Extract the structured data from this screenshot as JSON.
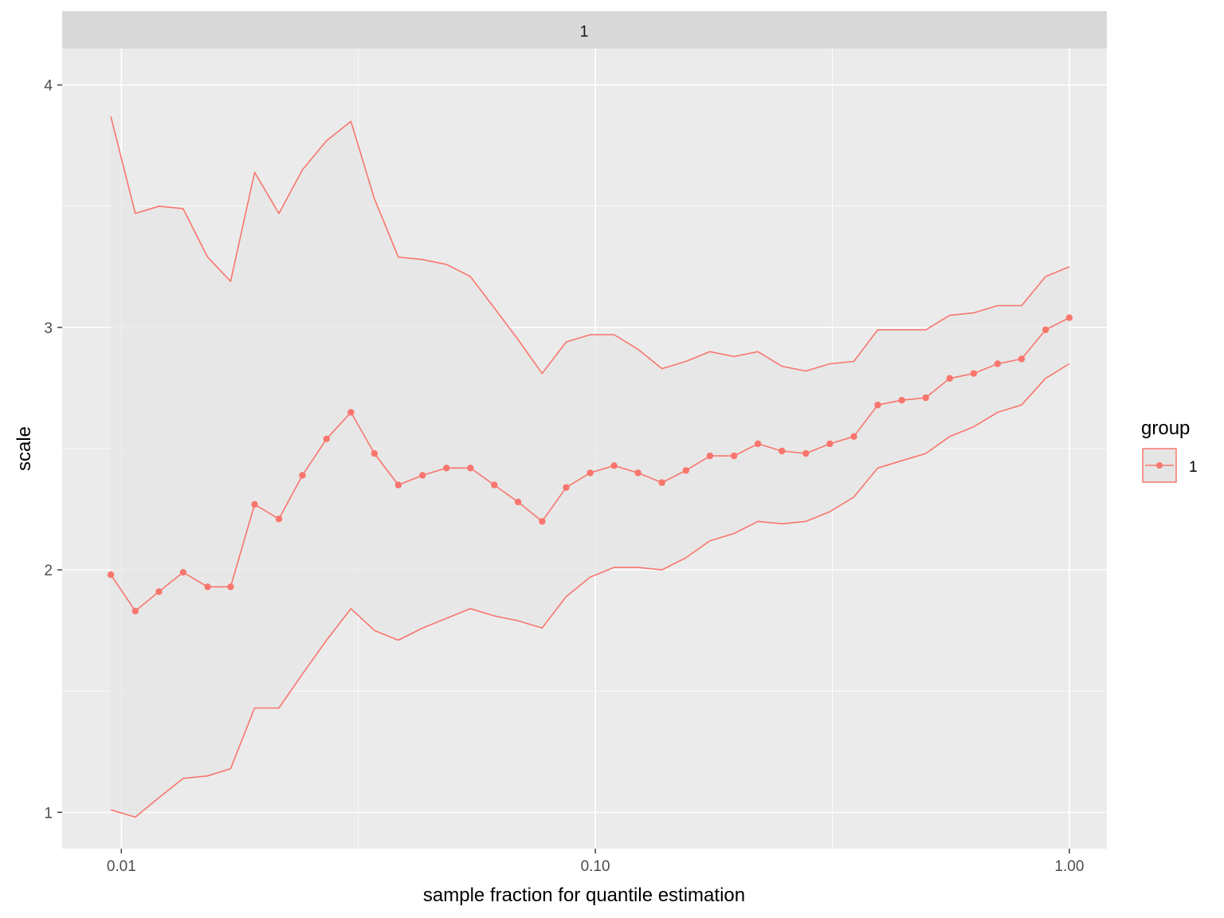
{
  "chart_data": {
    "type": "line",
    "title": "",
    "facet_label": "1",
    "xlabel": "sample fraction for quantile estimation",
    "ylabel": "scale",
    "x_scale": "log10",
    "xlim": [
      0.0075,
      1.2
    ],
    "ylim": [
      0.85,
      4.15
    ],
    "x_ticks": [
      0.01,
      0.1,
      1.0
    ],
    "x_tick_labels": [
      "0.01",
      "0.10",
      "1.00"
    ],
    "y_ticks": [
      1,
      2,
      3,
      4
    ],
    "y_tick_labels": [
      "1",
      "2",
      "3",
      "4"
    ],
    "grid": true,
    "legend": {
      "title": "group",
      "entries": [
        "1"
      ],
      "position": "right"
    },
    "colors": {
      "series": "#f8766d",
      "ribbon": "#e5e5e5",
      "panel": "#ebebeb",
      "strip": "#d9d9d9",
      "grid": "#ffffff"
    },
    "x": [
      0.0095,
      0.0107,
      0.012,
      0.0135,
      0.0152,
      0.017,
      0.0191,
      0.0215,
      0.0241,
      0.0271,
      0.0305,
      0.0342,
      0.0384,
      0.0432,
      0.0485,
      0.0545,
      0.0612,
      0.0687,
      0.0772,
      0.0868,
      0.0975,
      0.1095,
      0.123,
      0.1382,
      0.1553,
      0.1745,
      0.1961,
      0.2203,
      0.2475,
      0.278,
      0.3124,
      0.351,
      0.3943,
      0.443,
      0.4977,
      0.5592,
      0.6283,
      0.7059,
      0.7931,
      0.891,
      1.0
    ],
    "series": [
      {
        "name": "1",
        "role": "estimate",
        "values": [
          1.98,
          1.83,
          1.91,
          1.99,
          1.93,
          1.93,
          2.27,
          2.21,
          2.39,
          2.54,
          2.65,
          2.48,
          2.35,
          2.39,
          2.42,
          2.42,
          2.35,
          2.28,
          2.2,
          2.34,
          2.4,
          2.43,
          2.4,
          2.36,
          2.41,
          2.47,
          2.47,
          2.52,
          2.49,
          2.48,
          2.52,
          2.55,
          2.68,
          2.7,
          2.71,
          2.79,
          2.81,
          2.85,
          2.87,
          2.99,
          3.04
        ]
      },
      {
        "role": "upper_bound",
        "values": [
          3.87,
          3.47,
          3.5,
          3.49,
          3.29,
          3.19,
          3.64,
          3.47,
          3.65,
          3.77,
          3.85,
          3.53,
          3.29,
          3.28,
          3.26,
          3.21,
          3.08,
          2.95,
          2.81,
          2.94,
          2.97,
          2.97,
          2.91,
          2.83,
          2.86,
          2.9,
          2.88,
          2.9,
          2.84,
          2.82,
          2.85,
          2.86,
          2.99,
          2.99,
          2.99,
          3.05,
          3.06,
          3.09,
          3.09,
          3.21,
          3.25
        ]
      },
      {
        "role": "lower_bound",
        "values": [
          1.01,
          0.98,
          1.06,
          1.14,
          1.15,
          1.18,
          1.43,
          1.43,
          1.57,
          1.71,
          1.84,
          1.75,
          1.71,
          1.76,
          1.8,
          1.84,
          1.81,
          1.79,
          1.76,
          1.89,
          1.97,
          2.01,
          2.01,
          2.0,
          2.05,
          2.12,
          2.15,
          2.2,
          2.19,
          2.2,
          2.24,
          2.3,
          2.42,
          2.45,
          2.48,
          2.55,
          2.59,
          2.65,
          2.68,
          2.79,
          2.85
        ]
      }
    ]
  }
}
